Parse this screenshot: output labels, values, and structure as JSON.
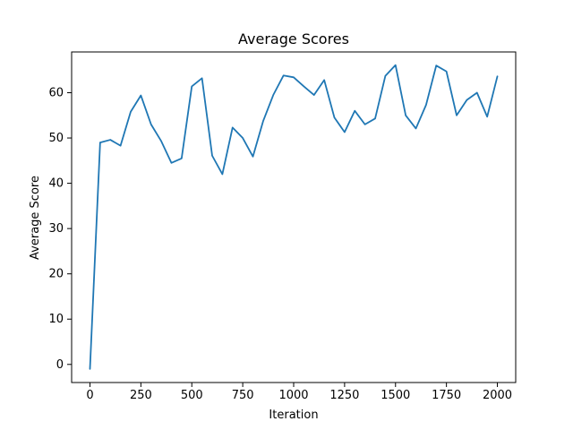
{
  "chart_data": {
    "type": "line",
    "title": "Average Scores",
    "xlabel": "Iteration",
    "ylabel": "Average Score",
    "xlim": [
      -90,
      2090
    ],
    "ylim": [
      -4,
      69
    ],
    "grid": false,
    "legend": "none",
    "series": [
      {
        "color": "#1f77b4",
        "x": [
          0,
          50,
          100,
          150,
          200,
          250,
          300,
          350,
          400,
          450,
          500,
          550,
          600,
          650,
          700,
          750,
          800,
          850,
          900,
          950,
          1000,
          1050,
          1100,
          1150,
          1200,
          1250,
          1300,
          1350,
          1400,
          1450,
          1500,
          1550,
          1600,
          1650,
          1700,
          1750,
          1800,
          1850,
          1900,
          1950,
          2000
        ],
        "y": [
          -1.0,
          49.0,
          49.6,
          48.3,
          55.8,
          59.4,
          53.0,
          49.3,
          44.5,
          45.5,
          61.4,
          63.2,
          46.1,
          42.0,
          52.3,
          50.0,
          45.9,
          53.7,
          59.5,
          63.8,
          63.4,
          61.4,
          59.5,
          62.8,
          54.5,
          51.3,
          56.0,
          53.0,
          54.3,
          63.7,
          66.1,
          55.0,
          52.1,
          57.3,
          66.0,
          64.7,
          55.0,
          58.4,
          60.0,
          54.7,
          63.6
        ]
      }
    ],
    "x_ticks": [
      {
        "value": 0,
        "label": "0"
      },
      {
        "value": 250,
        "label": "250"
      },
      {
        "value": 500,
        "label": "500"
      },
      {
        "value": 750,
        "label": "750"
      },
      {
        "value": 1000,
        "label": "1000"
      },
      {
        "value": 1250,
        "label": "1250"
      },
      {
        "value": 1500,
        "label": "1500"
      },
      {
        "value": 1750,
        "label": "1750"
      },
      {
        "value": 2000,
        "label": "2000"
      }
    ],
    "y_ticks": [
      {
        "value": 0,
        "label": "0"
      },
      {
        "value": 10,
        "label": "10"
      },
      {
        "value": 20,
        "label": "20"
      },
      {
        "value": 30,
        "label": "30"
      },
      {
        "value": 40,
        "label": "40"
      },
      {
        "value": 50,
        "label": "50"
      },
      {
        "value": 60,
        "label": "60"
      }
    ]
  }
}
